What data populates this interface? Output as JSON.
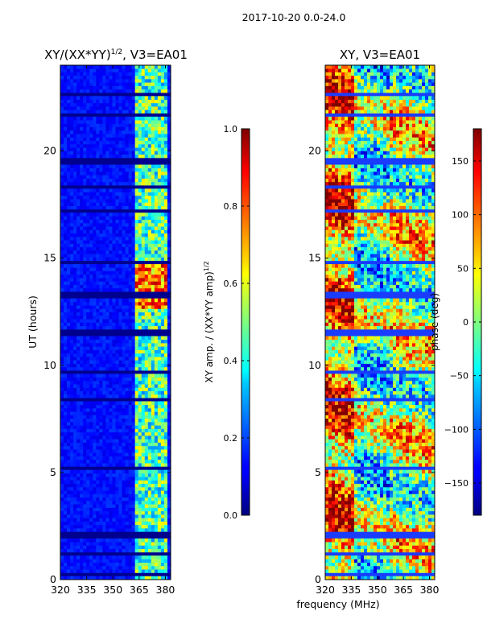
{
  "figure": {
    "suptitle": "2017-10-20 0.0-24.0",
    "shared_xlabel": "frequency (MHz)"
  },
  "chart_data": [
    {
      "type": "heatmap",
      "title": "XY/(XX*YY)^1/2, V3=EA01",
      "title_main": "XY/(XX*YY)",
      "title_sup": "1/2",
      "title_rest": ", V3=EA01",
      "xlabel": "frequency (MHz)",
      "ylabel": "UT (hours)",
      "xlim": [
        320,
        383
      ],
      "ylim": [
        0,
        24
      ],
      "xticks": [
        320,
        335,
        350,
        365,
        380
      ],
      "yticks": [
        0,
        5,
        10,
        15,
        20
      ],
      "colorbar": {
        "label": "XY amp. / (XX*YY amp)^1/2",
        "label_main": "XY amp. / (XX*YY amp)",
        "label_sup": "1/2",
        "range": [
          0.0,
          1.0
        ],
        "ticks": [
          "0.0",
          "0.2",
          "0.4",
          "0.6",
          "0.8",
          "1.0"
        ]
      }
    },
    {
      "type": "heatmap",
      "title": "XY, V3=EA01",
      "xlabel": "frequency (MHz)",
      "ylabel": "",
      "xlim": [
        320,
        383
      ],
      "ylim": [
        0,
        24
      ],
      "xticks": [
        320,
        335,
        350,
        365,
        380
      ],
      "yticks": [
        0,
        5,
        10,
        15,
        20
      ],
      "colorbar": {
        "label": "phase (deg)",
        "range": [
          -180,
          180
        ],
        "ticks": [
          "150",
          "100",
          "50",
          "0",
          "−50",
          "−100",
          "−150"
        ]
      }
    }
  ]
}
